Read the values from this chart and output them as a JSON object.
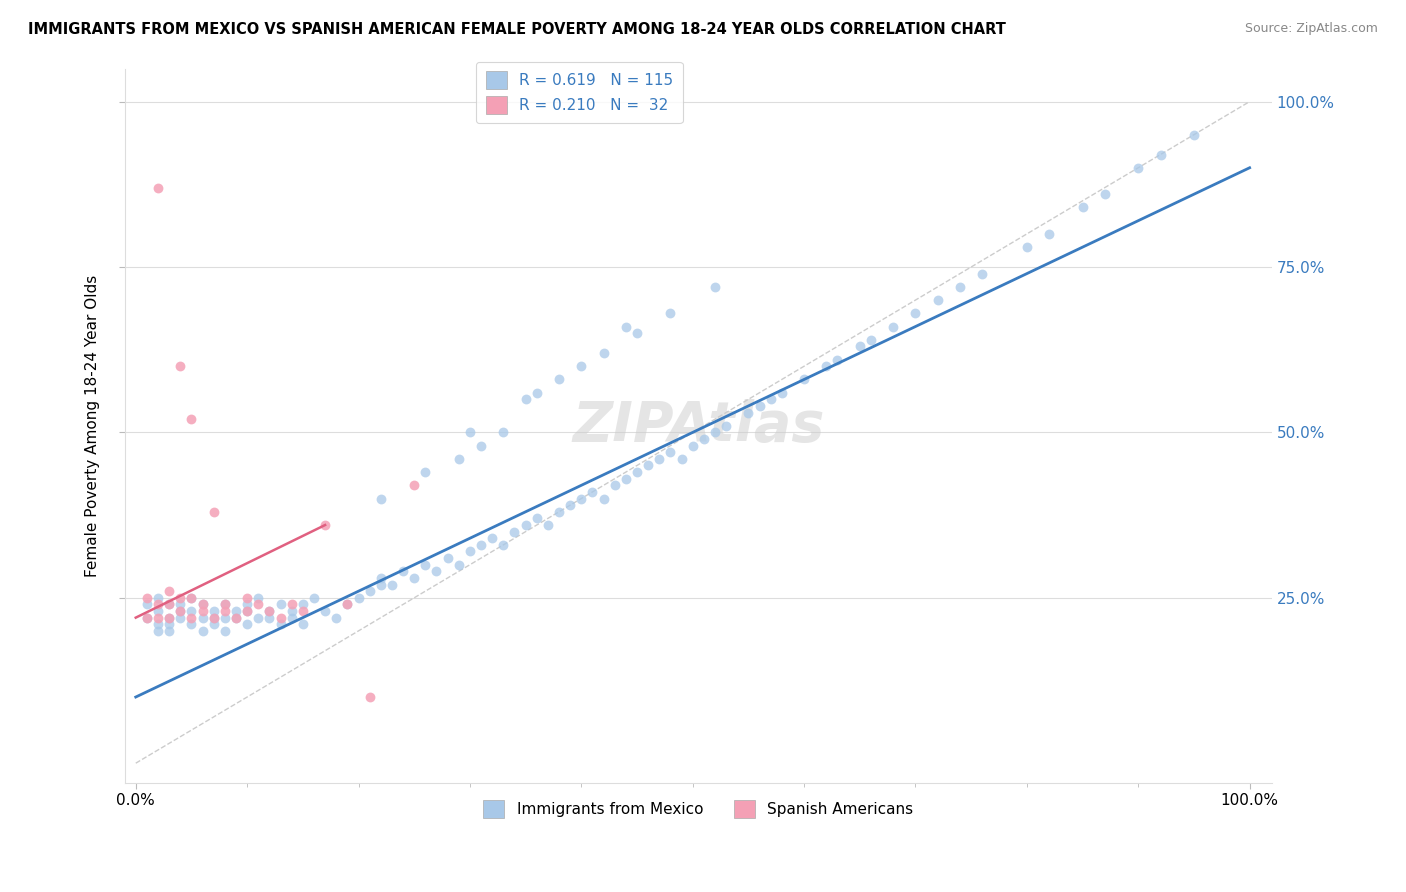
{
  "title": "IMMIGRANTS FROM MEXICO VS SPANISH AMERICAN FEMALE POVERTY AMONG 18-24 YEAR OLDS CORRELATION CHART",
  "source": "Source: ZipAtlas.com",
  "ylabel": "Female Poverty Among 18-24 Year Olds",
  "blue_R": 0.619,
  "blue_N": 115,
  "pink_R": 0.21,
  "pink_N": 32,
  "blue_color": "#a8c8e8",
  "pink_color": "#f4a0b5",
  "blue_line_color": "#3a7bbf",
  "pink_line_color": "#e06080",
  "watermark": "ZIPAtlas",
  "legend_blue_label": "Immigrants from Mexico",
  "legend_pink_label": "Spanish Americans",
  "blue_x": [
    0.01,
    0.01,
    0.02,
    0.02,
    0.02,
    0.02,
    0.03,
    0.03,
    0.03,
    0.03,
    0.04,
    0.04,
    0.04,
    0.05,
    0.05,
    0.05,
    0.06,
    0.06,
    0.06,
    0.07,
    0.07,
    0.07,
    0.08,
    0.08,
    0.08,
    0.09,
    0.09,
    0.1,
    0.1,
    0.1,
    0.11,
    0.11,
    0.12,
    0.12,
    0.13,
    0.13,
    0.14,
    0.14,
    0.15,
    0.15,
    0.16,
    0.17,
    0.18,
    0.19,
    0.2,
    0.21,
    0.22,
    0.22,
    0.23,
    0.24,
    0.25,
    0.26,
    0.27,
    0.28,
    0.29,
    0.3,
    0.31,
    0.32,
    0.33,
    0.34,
    0.35,
    0.36,
    0.37,
    0.38,
    0.39,
    0.4,
    0.41,
    0.42,
    0.43,
    0.44,
    0.45,
    0.46,
    0.47,
    0.48,
    0.49,
    0.5,
    0.51,
    0.52,
    0.53,
    0.55,
    0.56,
    0.57,
    0.58,
    0.6,
    0.62,
    0.63,
    0.65,
    0.66,
    0.68,
    0.7,
    0.72,
    0.74,
    0.76,
    0.8,
    0.82,
    0.85,
    0.87,
    0.9,
    0.92,
    0.95,
    0.3,
    0.35,
    0.4,
    0.45,
    0.38,
    0.42,
    0.36,
    0.48,
    0.52,
    0.44,
    0.29,
    0.31,
    0.33,
    0.26,
    0.22
  ],
  "blue_y": [
    0.22,
    0.24,
    0.21,
    0.23,
    0.25,
    0.2,
    0.22,
    0.24,
    0.2,
    0.21,
    0.23,
    0.22,
    0.24,
    0.21,
    0.23,
    0.25,
    0.22,
    0.2,
    0.24,
    0.22,
    0.23,
    0.21,
    0.22,
    0.24,
    0.2,
    0.23,
    0.22,
    0.21,
    0.24,
    0.23,
    0.22,
    0.25,
    0.23,
    0.22,
    0.24,
    0.21,
    0.23,
    0.22,
    0.24,
    0.21,
    0.25,
    0.23,
    0.22,
    0.24,
    0.25,
    0.26,
    0.27,
    0.28,
    0.27,
    0.29,
    0.28,
    0.3,
    0.29,
    0.31,
    0.3,
    0.32,
    0.33,
    0.34,
    0.33,
    0.35,
    0.36,
    0.37,
    0.36,
    0.38,
    0.39,
    0.4,
    0.41,
    0.4,
    0.42,
    0.43,
    0.44,
    0.45,
    0.46,
    0.47,
    0.46,
    0.48,
    0.49,
    0.5,
    0.51,
    0.53,
    0.54,
    0.55,
    0.56,
    0.58,
    0.6,
    0.61,
    0.63,
    0.64,
    0.66,
    0.68,
    0.7,
    0.72,
    0.74,
    0.78,
    0.8,
    0.84,
    0.86,
    0.9,
    0.92,
    0.95,
    0.5,
    0.55,
    0.6,
    0.65,
    0.58,
    0.62,
    0.56,
    0.68,
    0.72,
    0.66,
    0.46,
    0.48,
    0.5,
    0.44,
    0.4
  ],
  "pink_x": [
    0.01,
    0.01,
    0.02,
    0.02,
    0.02,
    0.03,
    0.03,
    0.03,
    0.04,
    0.04,
    0.04,
    0.05,
    0.05,
    0.05,
    0.06,
    0.06,
    0.07,
    0.07,
    0.08,
    0.08,
    0.09,
    0.1,
    0.1,
    0.11,
    0.12,
    0.13,
    0.14,
    0.15,
    0.17,
    0.19,
    0.21,
    0.25
  ],
  "pink_y": [
    0.22,
    0.25,
    0.22,
    0.24,
    0.87,
    0.22,
    0.24,
    0.26,
    0.23,
    0.25,
    0.6,
    0.22,
    0.25,
    0.52,
    0.23,
    0.24,
    0.22,
    0.38,
    0.23,
    0.24,
    0.22,
    0.23,
    0.25,
    0.24,
    0.23,
    0.22,
    0.24,
    0.23,
    0.36,
    0.24,
    0.1,
    0.42
  ]
}
